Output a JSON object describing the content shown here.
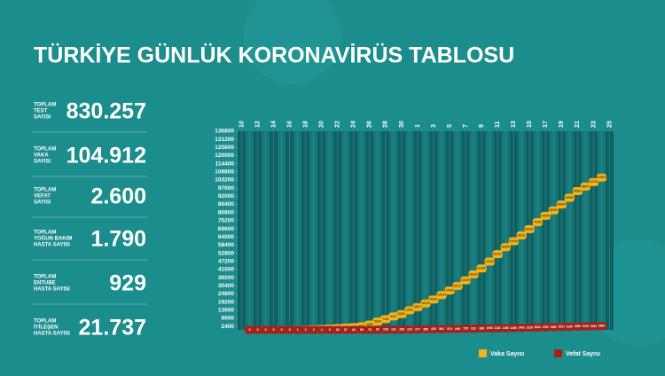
{
  "header": {
    "title": "TÜRKİYE GÜNLÜK KORONAVİRÜS TABLOSU"
  },
  "stats": [
    {
      "label": [
        "TOPLAM",
        "TEST",
        "SAYISI"
      ],
      "value": "830.257"
    },
    {
      "label": [
        "TOPLAM",
        "VAKA",
        "SAYISI"
      ],
      "value": "104.912"
    },
    {
      "label": [
        "TOPLAM",
        "VEFAT",
        "SAYISI"
      ],
      "value": "2.600"
    },
    {
      "label": [
        "TOPLAM",
        "YOĞUN BAKIM",
        "HASTA SAYISI"
      ],
      "value": "1.790"
    },
    {
      "label": [
        "TOPLAM",
        "ENTUBE",
        "HASTA SAYISI"
      ],
      "value": "929"
    },
    {
      "label": [
        "TOPLAM",
        "İYİLEŞEN",
        "HASTA SAYISI"
      ],
      "value": "21.737"
    }
  ],
  "chart_data": {
    "type": "line",
    "categories": [
      "10",
      null,
      "12",
      null,
      "14",
      null,
      "16",
      null,
      "18",
      null,
      "20",
      null,
      "22",
      null,
      "24",
      null,
      "26",
      null,
      "28",
      null,
      "30",
      null,
      "1",
      null,
      "3",
      null,
      "5",
      null,
      "7",
      null,
      "9",
      null,
      "11",
      null,
      "13",
      null,
      "15",
      null,
      "17",
      null,
      "19",
      null,
      "21",
      null,
      "23",
      null,
      "25"
    ],
    "series": [
      {
        "name": "Vaka Sayısı",
        "color": "#f2b21b",
        "values": [
          null,
          1,
          1,
          5,
          6,
          18,
          47,
          98,
          191,
          359,
          670,
          947,
          1236,
          1529,
          1872,
          2433,
          3629,
          5698,
          7402,
          9217,
          10827,
          13531,
          15679,
          18135,
          20921,
          23934,
          27069,
          30217,
          34109,
          38226,
          42282,
          47029,
          52167,
          56956,
          61049,
          65111,
          69392,
          74193,
          78546,
          82329,
          86306,
          90980,
          95591,
          98674,
          101790,
          104912,
          null
        ]
      },
      {
        "name": "Vefat Sayısı",
        "color": "#a3231a",
        "values": [
          null,
          0,
          0,
          0,
          0,
          0,
          0,
          1,
          2,
          3,
          4,
          9,
          30,
          37,
          44,
          59,
          75,
          92,
          108,
          131,
          168,
          214,
          277,
          356,
          425,
          501,
          574,
          649,
          725,
          812,
          908,
          1006,
          1101,
          1198,
          1296,
          1403,
          1518,
          1643,
          1769,
          1890,
          2017,
          2140,
          2259,
          2376,
          2491,
          2600,
          null
        ]
      }
    ],
    "ylim": [
      0,
      136800
    ],
    "yticks": [
      2400,
      8000,
      13600,
      19200,
      24800,
      30400,
      36000,
      41600,
      47200,
      52800,
      58400,
      64000,
      69600,
      75200,
      80800,
      86400,
      92000,
      97600,
      103200,
      108800,
      114400,
      120000,
      125600,
      131200,
      136800
    ],
    "grid": true,
    "legend": "bottom-right"
  }
}
